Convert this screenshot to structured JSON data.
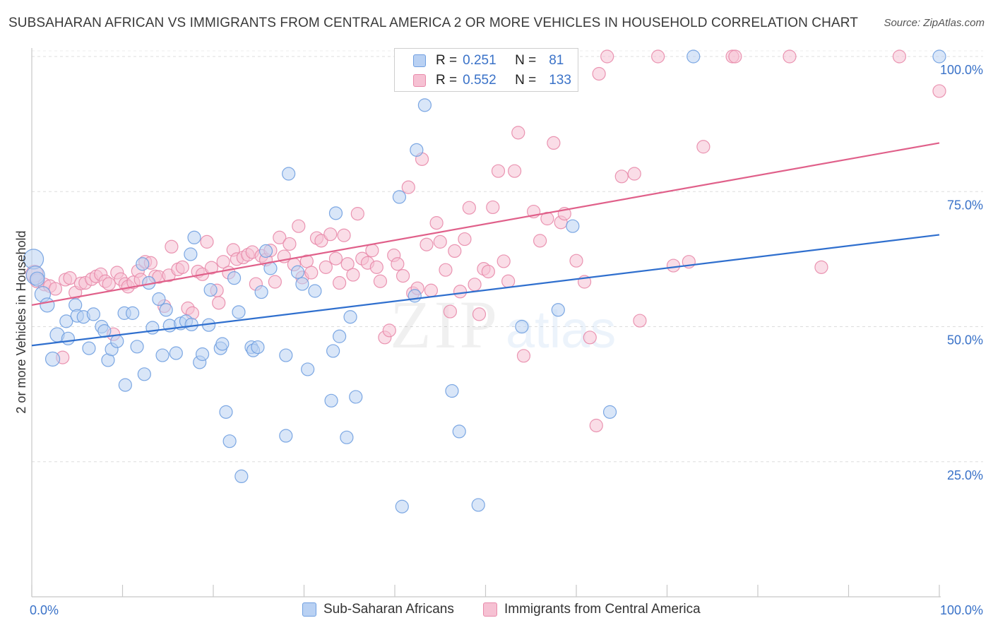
{
  "title": "SUBSAHARAN AFRICAN VS IMMIGRANTS FROM CENTRAL AMERICA 2 OR MORE VEHICLES IN HOUSEHOLD CORRELATION CHART",
  "source": "Source: ZipAtlas.com",
  "watermark": {
    "zip": "ZIP",
    "atlas": "atlas"
  },
  "colors": {
    "blue_fill": "#b9d1f3",
    "blue_stroke": "#6f9fe0",
    "blue_line": "#2f6fce",
    "pink_fill": "#f6c1d3",
    "pink_stroke": "#e88aaa",
    "pink_line": "#e0608a",
    "tick_text": "#3a72c8",
    "grid": "#dddddd"
  },
  "legend": {
    "rows": [
      {
        "r_label": "R =",
        "r_value": "0.251",
        "n_label": "N =",
        "n_value": "81"
      },
      {
        "r_label": "R =",
        "r_value": "0.552",
        "n_label": "N =",
        "n_value": "133"
      }
    ]
  },
  "bottom_legend": {
    "blue": "Sub-Saharan Africans",
    "pink": "Immigrants from Central America"
  },
  "chart_data": {
    "type": "scatter",
    "title": "SUBSAHARAN AFRICAN VS IMMIGRANTS FROM CENTRAL AMERICA 2 OR MORE VEHICLES IN HOUSEHOLD CORRELATION CHART",
    "xlabel": "",
    "ylabel": "2 or more Vehicles in Household",
    "xlim": [
      0,
      100
    ],
    "ylim": [
      0,
      100
    ],
    "x_tick_labels": [
      "0.0%",
      "100.0%"
    ],
    "y_tick_labels": [
      "25.0%",
      "50.0%",
      "75.0%",
      "100.0%"
    ],
    "y_ticks": [
      25,
      50,
      75,
      100
    ],
    "grid": true,
    "legend_position": "top-center",
    "series": [
      {
        "name": "Sub-Saharan Africans",
        "R": 0.251,
        "N": 81,
        "trend": [
          [
            0,
            46.5
          ],
          [
            100,
            67.0
          ]
        ],
        "points": [
          [
            0.2,
            62.5,
            14
          ],
          [
            0.4,
            59.5,
            13
          ],
          [
            0.6,
            58.8,
            10
          ],
          [
            1.2,
            56.0,
            11
          ],
          [
            1.7,
            54.0,
            10
          ],
          [
            2.3,
            44.0,
            10
          ],
          [
            2.8,
            48.5,
            10
          ],
          [
            3.8,
            51.0,
            9
          ],
          [
            4.0,
            47.8,
            9
          ],
          [
            4.8,
            54.0,
            9
          ],
          [
            5.0,
            52.0,
            9
          ],
          [
            5.7,
            51.8,
            9
          ],
          [
            6.3,
            46.0,
            9
          ],
          [
            6.8,
            52.3,
            9
          ],
          [
            7.7,
            50.0,
            9
          ],
          [
            8.0,
            49.2,
            9
          ],
          [
            8.4,
            43.8,
            9
          ],
          [
            8.8,
            45.8,
            9
          ],
          [
            9.4,
            47.3,
            9
          ],
          [
            10.2,
            52.5,
            9
          ],
          [
            10.3,
            39.2,
            9
          ],
          [
            11.1,
            52.5,
            9
          ],
          [
            11.6,
            46.3,
            9
          ],
          [
            12.2,
            61.6,
            9
          ],
          [
            12.4,
            41.2,
            9
          ],
          [
            12.9,
            58.1,
            9
          ],
          [
            13.3,
            49.8,
            9
          ],
          [
            14.0,
            55.1,
            9
          ],
          [
            14.4,
            44.7,
            9
          ],
          [
            14.8,
            53.1,
            9
          ],
          [
            15.2,
            50.2,
            9
          ],
          [
            15.9,
            45.1,
            9
          ],
          [
            16.4,
            50.6,
            9
          ],
          [
            17.0,
            51.0,
            9
          ],
          [
            17.5,
            63.4,
            9
          ],
          [
            17.6,
            50.4,
            9
          ],
          [
            17.9,
            66.5,
            9
          ],
          [
            18.5,
            43.4,
            9
          ],
          [
            18.8,
            44.9,
            9
          ],
          [
            19.5,
            50.3,
            9
          ],
          [
            19.7,
            56.8,
            9
          ],
          [
            20.8,
            46.0,
            9
          ],
          [
            21.0,
            46.8,
            9
          ],
          [
            21.4,
            34.2,
            9
          ],
          [
            21.8,
            28.8,
            9
          ],
          [
            22.3,
            59.0,
            9
          ],
          [
            22.8,
            52.7,
            9
          ],
          [
            23.1,
            22.3,
            9
          ],
          [
            24.2,
            46.2,
            9
          ],
          [
            24.4,
            45.6,
            9
          ],
          [
            24.9,
            46.2,
            9
          ],
          [
            25.3,
            56.4,
            9
          ],
          [
            25.8,
            64.0,
            9
          ],
          [
            26.3,
            60.8,
            9
          ],
          [
            28.0,
            44.7,
            9
          ],
          [
            28.0,
            29.8,
            9
          ],
          [
            28.3,
            78.3,
            9
          ],
          [
            29.3,
            60.1,
            9
          ],
          [
            29.8,
            57.9,
            9
          ],
          [
            30.4,
            42.1,
            9
          ],
          [
            31.2,
            56.6,
            9
          ],
          [
            33.0,
            36.3,
            9
          ],
          [
            33.2,
            45.5,
            9
          ],
          [
            33.5,
            71.0,
            9
          ],
          [
            33.9,
            48.2,
            9
          ],
          [
            34.7,
            29.5,
            9
          ],
          [
            35.1,
            51.8,
            9
          ],
          [
            35.7,
            37.0,
            9
          ],
          [
            40.5,
            74.0,
            9
          ],
          [
            40.8,
            16.7,
            9
          ],
          [
            42.2,
            55.7,
            9
          ],
          [
            42.4,
            82.7,
            9
          ],
          [
            43.3,
            91.0,
            9
          ],
          [
            46.3,
            38.1,
            9
          ],
          [
            47.1,
            30.6,
            9
          ],
          [
            49.2,
            17.0,
            9
          ],
          [
            54.0,
            50.0,
            9
          ],
          [
            58.0,
            53.1,
            9
          ],
          [
            59.6,
            68.6,
            9
          ],
          [
            63.7,
            34.2,
            9
          ],
          [
            72.9,
            100.0,
            9
          ],
          [
            100.0,
            100.0,
            9
          ]
        ]
      },
      {
        "name": "Immigrants from Central America",
        "R": 0.552,
        "N": 133,
        "trend": [
          [
            0,
            54.0
          ],
          [
            100,
            84.0
          ]
        ],
        "points": [
          [
            0.3,
            59.8,
            12
          ],
          [
            0.6,
            58.5,
            10
          ],
          [
            1.4,
            57.8,
            9
          ],
          [
            2.0,
            57.5,
            9
          ],
          [
            2.6,
            57.0,
            9
          ],
          [
            3.4,
            44.3,
            9
          ],
          [
            3.7,
            58.7,
            9
          ],
          [
            4.2,
            59.0,
            9
          ],
          [
            4.8,
            56.3,
            9
          ],
          [
            5.4,
            58.0,
            9
          ],
          [
            5.9,
            58.1,
            9
          ],
          [
            6.6,
            58.8,
            9
          ],
          [
            7.1,
            59.3,
            9
          ],
          [
            7.6,
            59.7,
            9
          ],
          [
            8.1,
            58.4,
            9
          ],
          [
            8.5,
            57.9,
            9
          ],
          [
            9.0,
            48.6,
            9
          ],
          [
            9.4,
            60.0,
            9
          ],
          [
            9.8,
            58.8,
            9
          ],
          [
            10.3,
            57.9,
            9
          ],
          [
            10.6,
            57.4,
            9
          ],
          [
            11.2,
            58.2,
            9
          ],
          [
            11.7,
            60.3,
            9
          ],
          [
            12.0,
            58.7,
            9
          ],
          [
            12.5,
            62.0,
            9
          ],
          [
            13.1,
            61.8,
            9
          ],
          [
            13.6,
            59.3,
            9
          ],
          [
            14.0,
            59.2,
            9
          ],
          [
            14.6,
            53.8,
            9
          ],
          [
            15.1,
            59.5,
            9
          ],
          [
            15.4,
            64.8,
            9
          ],
          [
            16.1,
            60.6,
            9
          ],
          [
            16.6,
            61.0,
            9
          ],
          [
            17.2,
            53.4,
            9
          ],
          [
            17.7,
            52.5,
            9
          ],
          [
            18.3,
            60.2,
            9
          ],
          [
            18.8,
            59.7,
            9
          ],
          [
            19.3,
            65.7,
            9
          ],
          [
            19.8,
            60.9,
            9
          ],
          [
            20.4,
            56.7,
            9
          ],
          [
            20.6,
            54.4,
            9
          ],
          [
            21.1,
            62.0,
            9
          ],
          [
            21.7,
            60.0,
            9
          ],
          [
            22.2,
            64.2,
            9
          ],
          [
            22.6,
            62.5,
            9
          ],
          [
            23.3,
            62.8,
            9
          ],
          [
            23.8,
            63.3,
            9
          ],
          [
            24.3,
            63.8,
            9
          ],
          [
            24.7,
            57.9,
            9
          ],
          [
            25.3,
            63.1,
            9
          ],
          [
            25.8,
            62.4,
            9
          ],
          [
            26.3,
            64.1,
            9
          ],
          [
            26.8,
            58.3,
            9
          ],
          [
            27.3,
            66.5,
            9
          ],
          [
            27.8,
            63.0,
            9
          ],
          [
            28.4,
            65.3,
            9
          ],
          [
            28.9,
            61.5,
            9
          ],
          [
            29.4,
            68.6,
            9
          ],
          [
            29.8,
            59.1,
            9
          ],
          [
            30.3,
            62.1,
            9
          ],
          [
            30.8,
            60.0,
            9
          ],
          [
            31.4,
            66.4,
            9
          ],
          [
            31.9,
            65.9,
            9
          ],
          [
            32.4,
            61.0,
            9
          ],
          [
            32.9,
            67.1,
            9
          ],
          [
            33.5,
            62.6,
            9
          ],
          [
            33.9,
            58.1,
            9
          ],
          [
            34.4,
            66.9,
            9
          ],
          [
            34.8,
            61.6,
            9
          ],
          [
            35.4,
            59.6,
            9
          ],
          [
            35.9,
            70.9,
            9
          ],
          [
            36.4,
            62.6,
            9
          ],
          [
            37.0,
            61.8,
            9
          ],
          [
            37.5,
            64.1,
            9
          ],
          [
            38.0,
            61.0,
            9
          ],
          [
            38.4,
            58.4,
            9
          ],
          [
            38.9,
            48.0,
            9
          ],
          [
            39.4,
            49.3,
            9
          ],
          [
            39.9,
            63.2,
            9
          ],
          [
            40.3,
            61.6,
            9
          ],
          [
            40.9,
            59.4,
            9
          ],
          [
            41.5,
            75.8,
            9
          ],
          [
            42.0,
            56.2,
            9
          ],
          [
            42.5,
            57.1,
            9
          ],
          [
            43.0,
            81.0,
            9
          ],
          [
            43.5,
            65.2,
            9
          ],
          [
            44.0,
            56.7,
            9
          ],
          [
            44.6,
            69.2,
            9
          ],
          [
            45.0,
            65.7,
            9
          ],
          [
            45.6,
            60.5,
            9
          ],
          [
            46.1,
            52.8,
            9
          ],
          [
            46.6,
            64.0,
            9
          ],
          [
            47.2,
            56.5,
            9
          ],
          [
            47.7,
            66.2,
            9
          ],
          [
            48.2,
            72.0,
            9
          ],
          [
            48.8,
            57.8,
            9
          ],
          [
            49.3,
            52.3,
            9
          ],
          [
            49.8,
            60.7,
            9
          ],
          [
            50.3,
            60.2,
            9
          ],
          [
            50.8,
            72.1,
            9
          ],
          [
            51.4,
            78.8,
            9
          ],
          [
            52.0,
            62.1,
            9
          ],
          [
            52.5,
            58.4,
            9
          ],
          [
            53.2,
            78.8,
            9
          ],
          [
            53.6,
            85.9,
            9
          ],
          [
            54.2,
            44.6,
            9
          ],
          [
            54.8,
            100.0,
            9
          ],
          [
            55.3,
            71.3,
            9
          ],
          [
            56.0,
            65.9,
            9
          ],
          [
            56.8,
            70.0,
            9
          ],
          [
            57.5,
            84.0,
            9
          ],
          [
            58.3,
            69.3,
            9
          ],
          [
            58.7,
            70.9,
            9
          ],
          [
            60.0,
            62.2,
            9
          ],
          [
            60.9,
            58.3,
            9
          ],
          [
            61.5,
            48.0,
            9
          ],
          [
            62.2,
            31.7,
            9
          ],
          [
            62.5,
            96.8,
            9
          ],
          [
            63.4,
            100.0,
            9
          ],
          [
            65.0,
            77.8,
            9
          ],
          [
            66.4,
            78.3,
            9
          ],
          [
            67.0,
            51.1,
            9
          ],
          [
            69.0,
            100.0,
            9
          ],
          [
            70.7,
            61.3,
            9
          ],
          [
            72.4,
            62.0,
            9
          ],
          [
            74.0,
            83.3,
            9
          ],
          [
            77.2,
            100.0,
            9
          ],
          [
            77.5,
            100.0,
            9
          ],
          [
            83.5,
            100.0,
            9
          ],
          [
            87.0,
            61.0,
            9
          ],
          [
            95.6,
            100.0,
            9
          ],
          [
            100.0,
            93.6,
            9
          ]
        ]
      }
    ]
  }
}
